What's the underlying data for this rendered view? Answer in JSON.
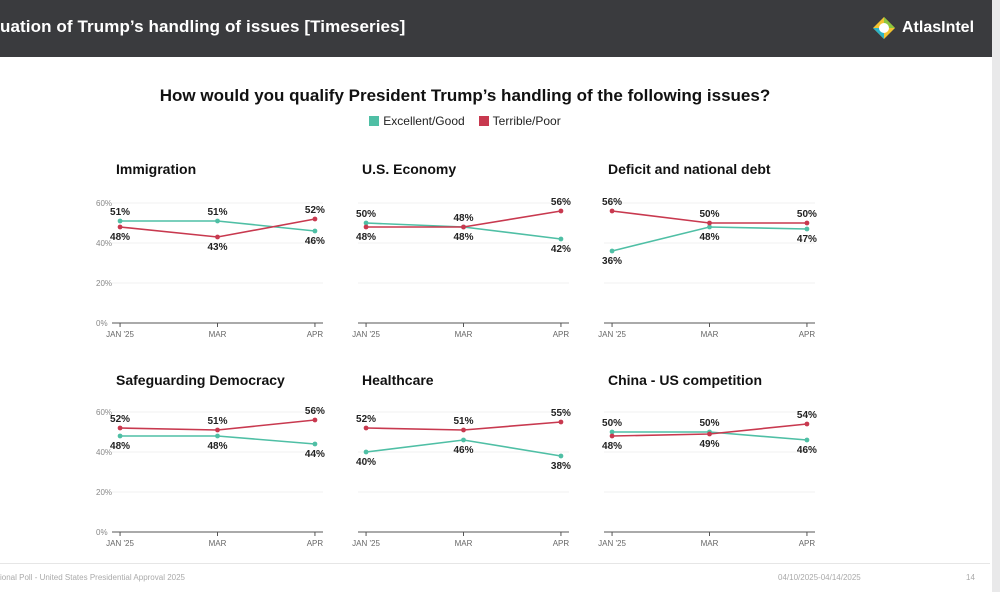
{
  "header": {
    "title": "uation of Trump’s handling of issues [Timeseries]",
    "logo_text": "AtlasIntel",
    "logo_icon": "atlasintel-logo-icon"
  },
  "question": "How would you qualify President Trump’s handling of the following issues?",
  "legend": [
    {
      "label": "Excellent/Good",
      "color": "#4fbfa5"
    },
    {
      "label": "Terrible/Poor",
      "color": "#c8394f"
    }
  ],
  "footer": {
    "left": "ional Poll - United States Presidential Approval 2025",
    "date": "04/10/2025-04/14/2025",
    "page": "14"
  },
  "chart_data": [
    {
      "type": "line",
      "title": "Immigration",
      "categories": [
        "JAN '25",
        "MAR",
        "APR"
      ],
      "ylim": [
        0,
        60
      ],
      "yticks": [
        "0%",
        "20%",
        "40%",
        "60%"
      ],
      "series": [
        {
          "name": "Excellent/Good",
          "values": [
            51,
            51,
            46
          ]
        },
        {
          "name": "Terrible/Poor",
          "values": [
            48,
            43,
            52
          ]
        }
      ]
    },
    {
      "type": "line",
      "title": "U.S. Economy",
      "categories": [
        "JAN '25",
        "MAR",
        "APR"
      ],
      "ylim": [
        0,
        60
      ],
      "yticks": [],
      "series": [
        {
          "name": "Excellent/Good",
          "values": [
            50,
            48,
            42
          ]
        },
        {
          "name": "Terrible/Poor",
          "values": [
            48,
            48,
            56
          ]
        }
      ]
    },
    {
      "type": "line",
      "title": "Deficit and national debt",
      "categories": [
        "JAN '25",
        "MAR",
        "APR"
      ],
      "ylim": [
        0,
        60
      ],
      "yticks": [],
      "series": [
        {
          "name": "Excellent/Good",
          "values": [
            36,
            48,
            47
          ]
        },
        {
          "name": "Terrible/Poor",
          "values": [
            56,
            50,
            50
          ]
        }
      ]
    },
    {
      "type": "line",
      "title": "Safeguarding Democracy",
      "categories": [
        "JAN '25",
        "MAR",
        "APR"
      ],
      "ylim": [
        0,
        60
      ],
      "yticks": [
        "0%",
        "20%",
        "40%",
        "60%"
      ],
      "series": [
        {
          "name": "Excellent/Good",
          "values": [
            48,
            48,
            44
          ]
        },
        {
          "name": "Terrible/Poor",
          "values": [
            52,
            51,
            56
          ]
        }
      ]
    },
    {
      "type": "line",
      "title": "Healthcare",
      "categories": [
        "JAN '25",
        "MAR",
        "APR"
      ],
      "ylim": [
        0,
        60
      ],
      "yticks": [],
      "series": [
        {
          "name": "Excellent/Good",
          "values": [
            40,
            46,
            38
          ]
        },
        {
          "name": "Terrible/Poor",
          "values": [
            52,
            51,
            55
          ]
        }
      ]
    },
    {
      "type": "line",
      "title": "China - US competition",
      "categories": [
        "JAN '25",
        "MAR",
        "APR"
      ],
      "ylim": [
        0,
        60
      ],
      "yticks": [],
      "series": [
        {
          "name": "Excellent/Good",
          "values": [
            50,
            50,
            46
          ]
        },
        {
          "name": "Terrible/Poor",
          "values": [
            48,
            49,
            54
          ]
        }
      ]
    }
  ]
}
